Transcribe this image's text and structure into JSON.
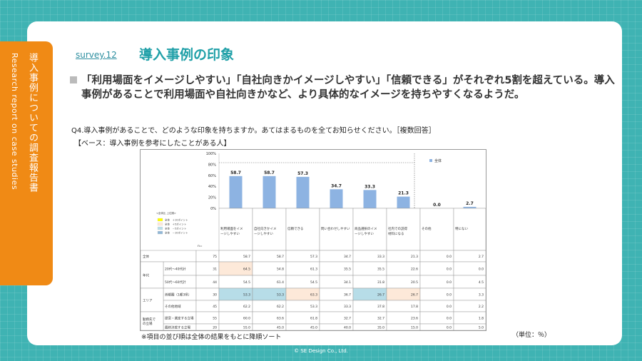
{
  "side": {
    "title_jp": "導入事例についての調査報告書",
    "title_en": "Research report on case studies"
  },
  "header": {
    "survey_no": "survey.12",
    "title": "導入事例の印象"
  },
  "summary": "「利用場面をイメージしやすい」「自社向きかイメージしやすい」「信頼できる」がそれぞれ5割を超えている。導入事例があることで利用場面や自社向きかなど、より具体的なイメージを持ちやすくなるようだ。",
  "question": "Q4.導入事例があることで、どのような印象を持ちますか。あてはまるものを全てお知らせください。［複数回答］",
  "base": "【ベース：導入事例を参考にしたことがある人】",
  "legend_series": "全体",
  "highlight_legend": {
    "title": "<全体比 上位順>",
    "items": [
      {
        "label": "全体　＋10ポイント",
        "color": "#ffff00"
      },
      {
        "label": "全体　＋5ポイント",
        "color": "#fde9d9"
      },
      {
        "label": "全体　－5ポイント",
        "color": "#b7dde8"
      },
      {
        "label": "全体　－10ポイント",
        "color": "#92b7d6"
      }
    ]
  },
  "n_header": "n=",
  "chart_data": {
    "type": "bar",
    "categories": [
      "利用場面をイメージしやすい",
      "自社向きかイメージしやすい",
      "信頼できる",
      "問い合わせしやすい",
      "商品選択のイメージしやすい",
      "社内での説得材料になる",
      "その他",
      "特にない"
    ],
    "series": [
      {
        "name": "全体",
        "values": [
          58.7,
          58.7,
          57.3,
          34.7,
          33.3,
          21.3,
          0.0,
          2.7
        ]
      }
    ],
    "value_labels": [
      "58.7",
      "58.7",
      "57.3",
      "34.7",
      "33.3",
      "21.3",
      "0.0",
      "2.7"
    ],
    "yticks": [
      "100%",
      "80%",
      "60%",
      "40%",
      "20%",
      "0%"
    ],
    "ylim": [
      0,
      100
    ],
    "bar_color": "#8db3e2"
  },
  "table": {
    "rows": [
      {
        "group": "全体",
        "label": "",
        "n": "75",
        "values": [
          "58.7",
          "58.7",
          "57.3",
          "34.7",
          "33.3",
          "21.3",
          "0.0",
          "2.7"
        ],
        "hl": [
          "",
          "",
          "",
          "",
          "",
          "",
          "",
          ""
        ]
      },
      {
        "group": "年代",
        "label": "20代～40代計",
        "n": "31",
        "values": [
          "64.5",
          "54.8",
          "61.3",
          "35.5",
          "35.5",
          "22.6",
          "0.0",
          "0.0"
        ],
        "hl": [
          "p5",
          "",
          "",
          "",
          "",
          "",
          "",
          ""
        ]
      },
      {
        "group": "",
        "label": "50代～60代計",
        "n": "44",
        "values": [
          "54.5",
          "61.4",
          "54.5",
          "34.1",
          "31.8",
          "20.5",
          "0.0",
          "4.5"
        ],
        "hl": [
          "",
          "",
          "",
          "",
          "",
          "",
          "",
          ""
        ]
      },
      {
        "group": "エリア",
        "label": "首都圏（1都3県）",
        "n": "30",
        "values": [
          "53.3",
          "53.3",
          "63.3",
          "36.7",
          "26.7",
          "26.7",
          "0.0",
          "3.3"
        ],
        "hl": [
          "m5",
          "m5",
          "p5",
          "",
          "m5",
          "p5",
          "",
          ""
        ]
      },
      {
        "group": "",
        "label": "その他地域",
        "n": "45",
        "values": [
          "62.2",
          "62.2",
          "53.3",
          "33.3",
          "37.8",
          "17.8",
          "0.0",
          "2.2"
        ],
        "hl": [
          "",
          "",
          "",
          "",
          "",
          "",
          "",
          ""
        ]
      },
      {
        "group": "勤務先での立場",
        "label": "提案・選定する立場",
        "n": "55",
        "values": [
          "60.0",
          "63.6",
          "61.8",
          "32.7",
          "32.7",
          "23.6",
          "0.0",
          "1.8"
        ],
        "hl": [
          "",
          "",
          "",
          "",
          "",
          "",
          "",
          ""
        ]
      },
      {
        "group": "",
        "label": "最終決裁する立場",
        "n": "20",
        "values": [
          "55.0",
          "45.0",
          "45.0",
          "40.0",
          "35.0",
          "15.0",
          "0.0",
          "5.0"
        ],
        "hl": [
          "",
          "",
          "",
          "",
          "",
          "",
          "",
          ""
        ]
      }
    ],
    "highlight_colors": {
      "p10": "#ffff00",
      "p5": "#fde9d9",
      "m5": "#b7dde8",
      "m10": "#92b7d6"
    }
  },
  "note": "※項目の並び順は全体の結果をもとに降順ソート",
  "unit": "（単位：％）",
  "copyright": "© SE Design Co., Ltd."
}
